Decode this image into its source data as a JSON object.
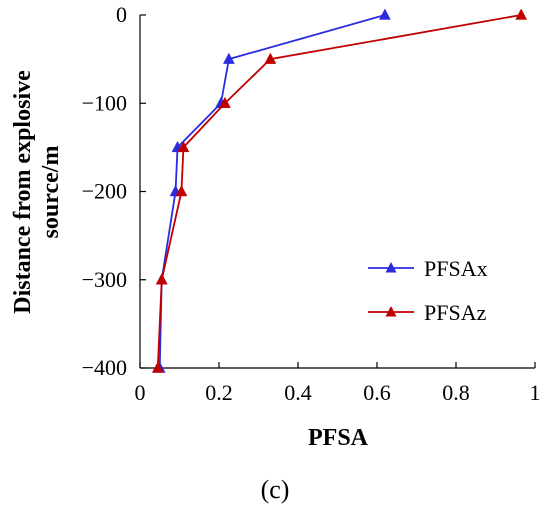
{
  "chart_data": {
    "type": "line",
    "xlabel": "PFSA",
    "ylabel": "Distance from explosive source/m",
    "ylabel_lines": [
      "Distance from explosive",
      "source/m"
    ],
    "xlim": [
      0,
      1
    ],
    "ylim": [
      -400,
      0
    ],
    "x_ticks": [
      0,
      0.2,
      0.4,
      0.6,
      0.8,
      1
    ],
    "x_tick_labels": [
      "0",
      "0.2",
      "0.4",
      "0.6",
      "0.8",
      "1"
    ],
    "y_ticks": [
      0,
      -100,
      -200,
      -300,
      -400
    ],
    "y_tick_labels": [
      "0",
      "−100",
      "−200",
      "−300",
      "−400"
    ],
    "grid": false,
    "legend_position": "lower-right",
    "series": [
      {
        "name": "PFSAx",
        "color": "#2B2BE0",
        "marker": "triangle",
        "x": [
          0.62,
          0.225,
          0.205,
          0.095,
          0.09,
          0.055,
          0.05
        ],
        "y": [
          0,
          -50,
          -100,
          -150,
          -200,
          -300,
          -400
        ]
      },
      {
        "name": "PFSAz",
        "color": "#C00000",
        "marker": "triangle",
        "x": [
          0.965,
          0.33,
          0.215,
          0.11,
          0.105,
          0.055,
          0.045
        ],
        "y": [
          0,
          -50,
          -100,
          -150,
          -200,
          -300,
          -400
        ]
      }
    ],
    "caption": "(c)"
  }
}
